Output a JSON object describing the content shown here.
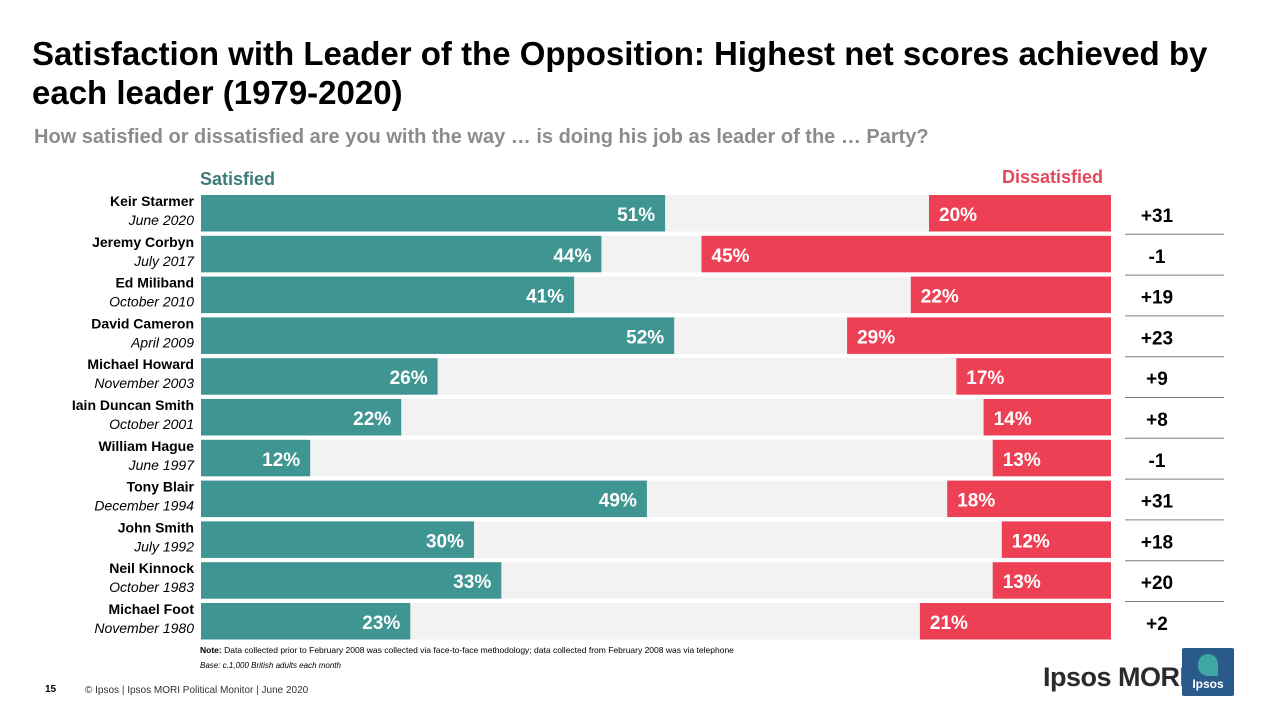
{
  "title": "Satisfaction with Leader of the Opposition: Highest net scores achieved by each leader (1979-2020)",
  "subtitle": "How satisfied or dissatisfied are you with the way … is doing his job as leader of the … Party?",
  "legend": {
    "satisfied": "Satisfied",
    "dissatisfied": "Dissatisfied"
  },
  "colors": {
    "satisfied": "#3f9592",
    "dissatisfied": "#ee4055",
    "track": "#f2f2f2",
    "legend_satisfied": "#3c7b78",
    "legend_dissatisfied": "#e2485a"
  },
  "chart_data": {
    "type": "bar",
    "orientation": "horizontal-diverging",
    "title": "Satisfaction with Leader of the Opposition: Highest net scores achieved by each leader (1979-2020)",
    "xlim": [
      0,
      100
    ],
    "categories": [
      "Keir Starmer",
      "Jeremy Corbyn",
      "Ed Miliband",
      "David Cameron",
      "Michael Howard",
      "Iain Duncan Smith",
      "William Hague",
      "Tony Blair",
      "John Smith",
      "Neil Kinnock",
      "Michael Foot"
    ],
    "dates": [
      "June 2020",
      "July 2017",
      "October 2010",
      "April 2009",
      "November 2003",
      "October 2001",
      "June 1997",
      "December 1994",
      "July 1992",
      "October 1983",
      "November 1980"
    ],
    "series": [
      {
        "name": "Satisfied",
        "values": [
          51,
          44,
          41,
          52,
          26,
          22,
          12,
          49,
          30,
          33,
          23
        ]
      },
      {
        "name": "Dissatisfied",
        "values": [
          20,
          45,
          22,
          29,
          17,
          14,
          13,
          18,
          12,
          13,
          21
        ]
      }
    ],
    "net": [
      "+31",
      "-1",
      "+19",
      "+23",
      "+9",
      "+8",
      "-1",
      "+31",
      "+18",
      "+20",
      "+2"
    ]
  },
  "note": {
    "label": "Note:",
    "text": " Data collected prior to February 2008 was collected via face-to-face methodology; data collected from February 2008 was via telephone"
  },
  "base": "Base: c.1,000 British adults each month",
  "footer": {
    "page_number": "15",
    "source": "© Ipsos | Ipsos MORI Political Monitor | June 2020"
  },
  "logo": {
    "text": "Ipsos MORI",
    "badge": "Ipsos"
  }
}
